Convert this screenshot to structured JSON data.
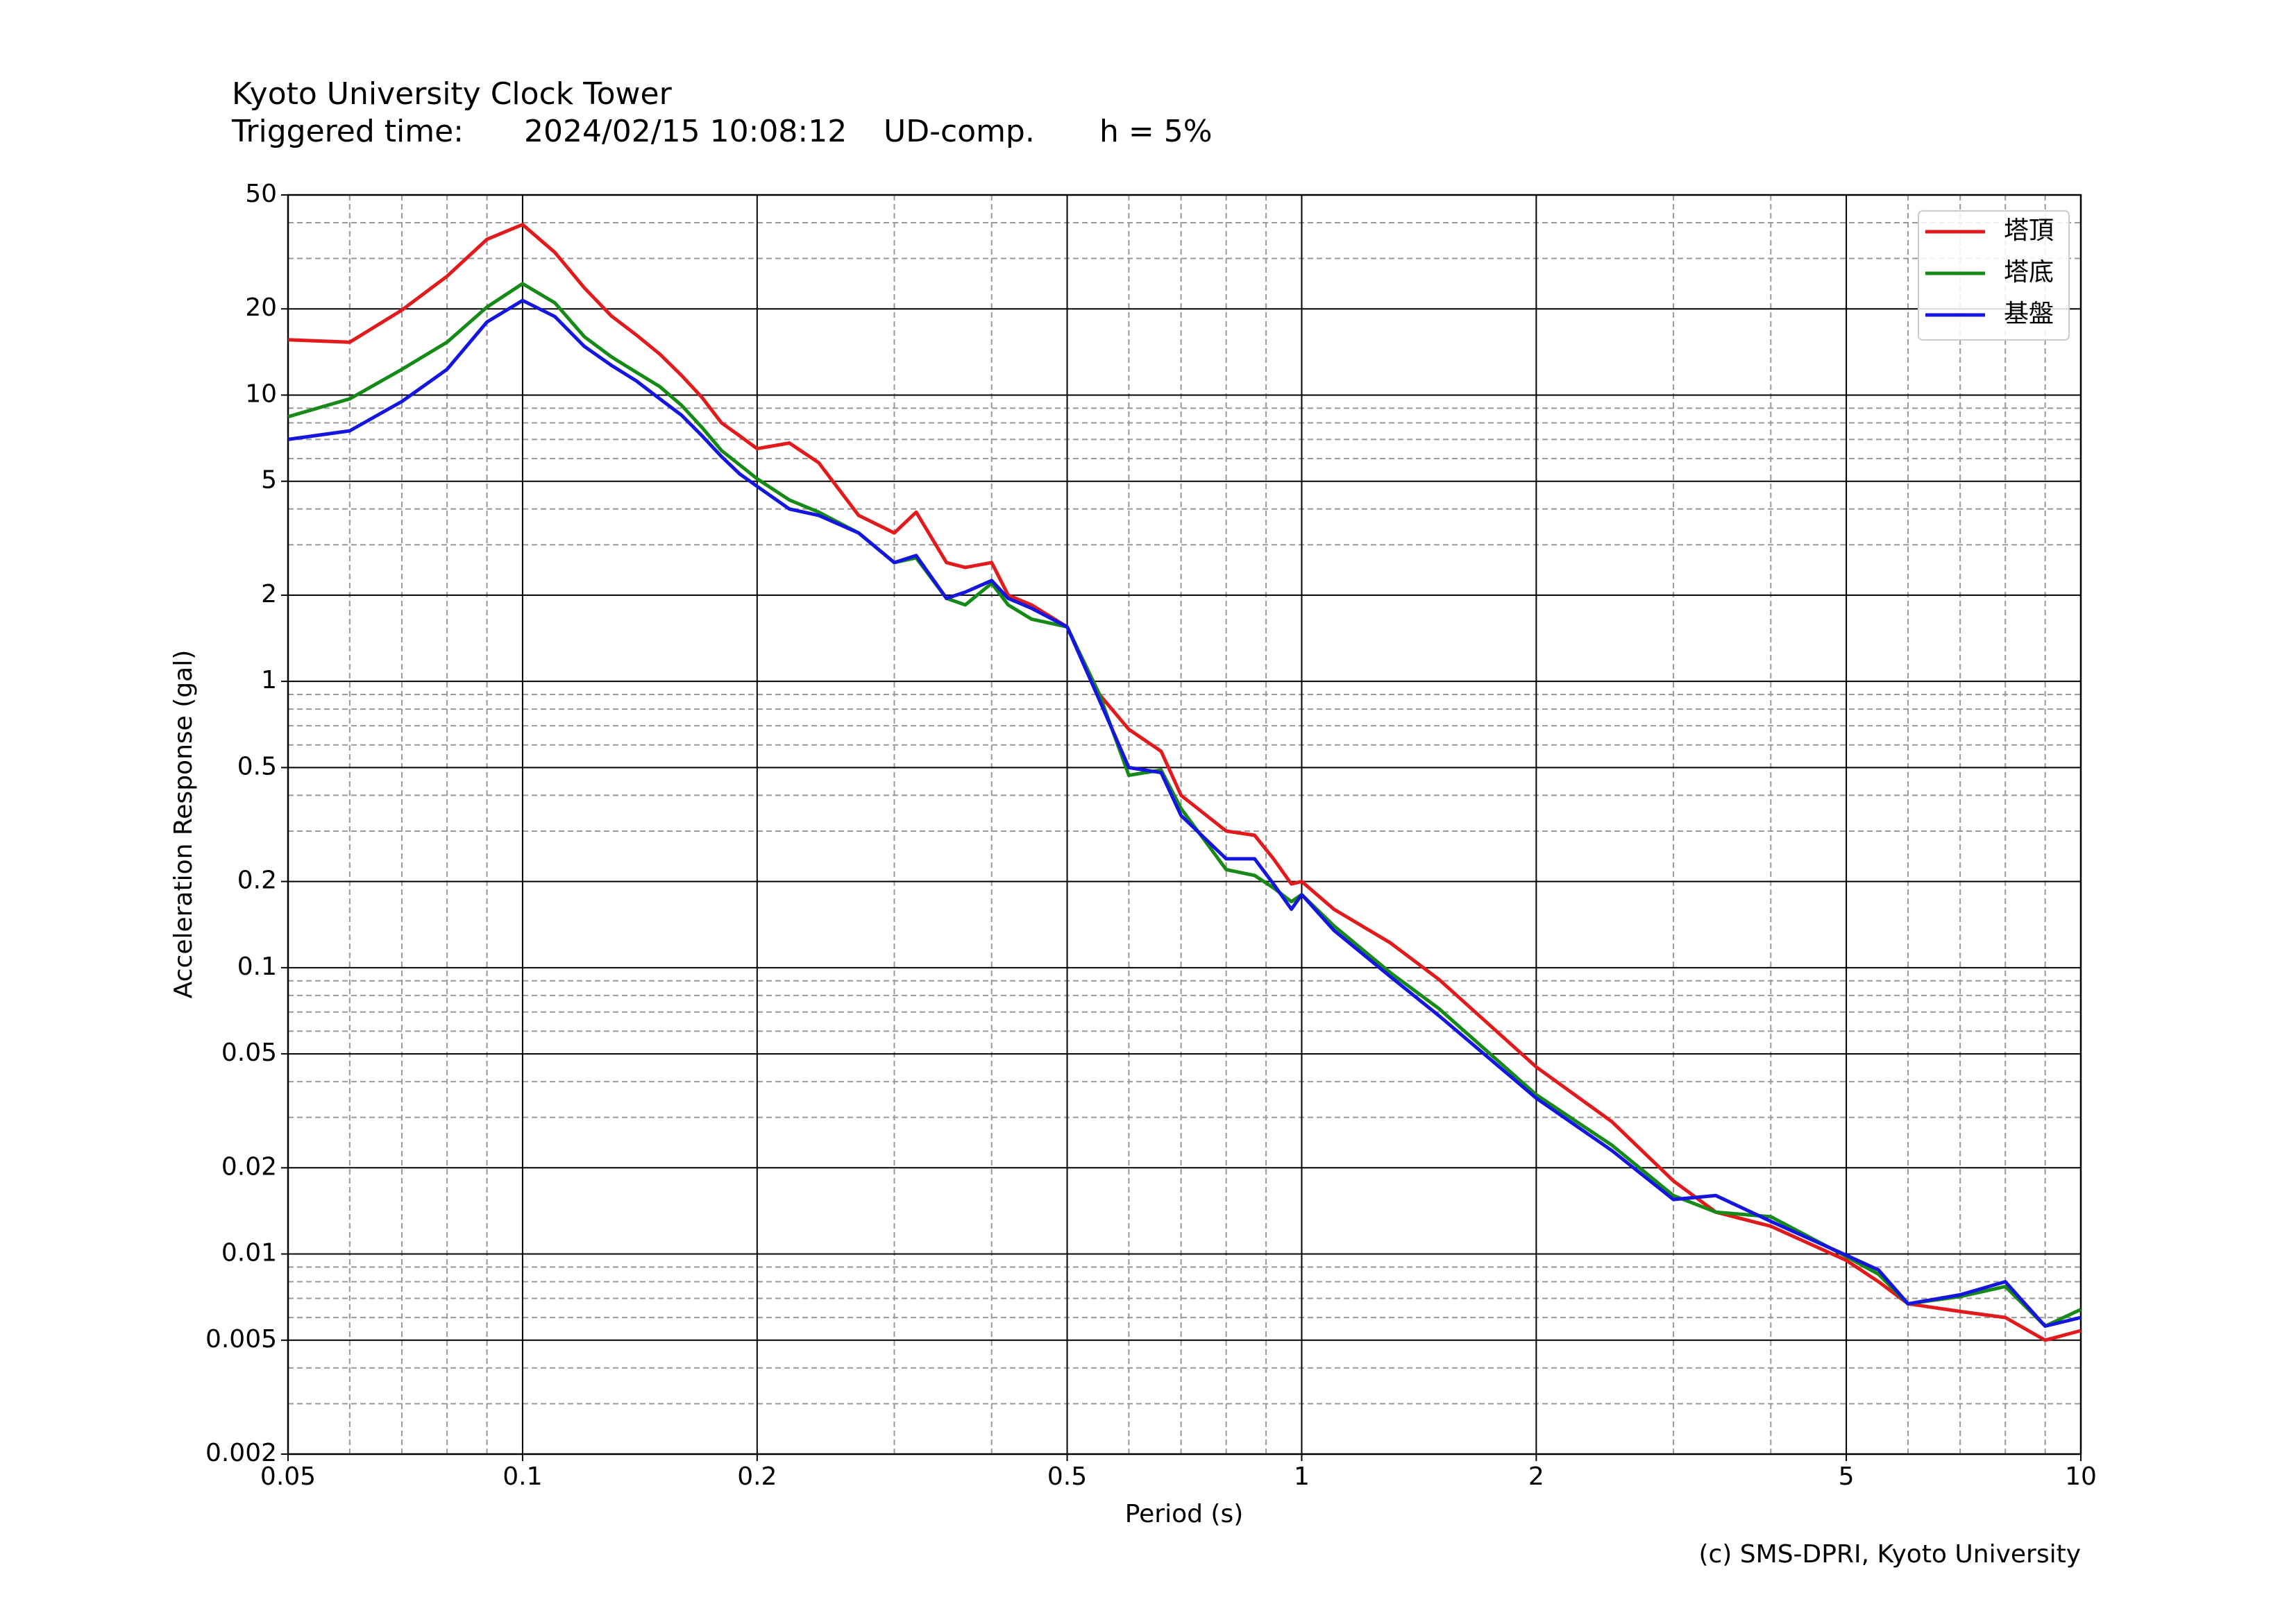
{
  "chart_data": {
    "type": "line",
    "title": "Kyoto University Clock Tower",
    "subtitle": [
      "Triggered time:",
      "2024/02/15 10:08:12",
      "UD-comp.",
      "h = 5%"
    ],
    "xlabel": "Period (s)",
    "ylabel": "Acceleration Response (gal)",
    "credit": "(c) SMS-DPRI, Kyoto University",
    "xscale": "log",
    "yscale": "log",
    "grid": true,
    "legend_loc": "upper right",
    "xlim": [
      0.05,
      10
    ],
    "ylim": [
      0.002,
      50
    ],
    "xticks": [
      0.05,
      0.1,
      0.2,
      0.5,
      1,
      2,
      5,
      10
    ],
    "xminor": [
      0.06,
      0.07,
      0.08,
      0.09,
      0.3,
      0.4,
      0.6,
      0.7,
      0.8,
      0.9,
      3,
      4,
      6,
      7,
      8,
      9
    ],
    "yticks": [
      0.002,
      0.005,
      0.01,
      0.02,
      0.05,
      0.1,
      0.2,
      0.5,
      1,
      2,
      5,
      10,
      20,
      50
    ],
    "yminor": [
      0.003,
      0.004,
      0.006,
      0.007,
      0.008,
      0.009,
      0.03,
      0.04,
      0.06,
      0.07,
      0.08,
      0.09,
      0.3,
      0.4,
      0.6,
      0.7,
      0.8,
      0.9,
      3,
      4,
      6,
      7,
      8,
      9,
      30,
      40
    ],
    "x": [
      0.05,
      0.06,
      0.07,
      0.08,
      0.09,
      0.1,
      0.11,
      0.12,
      0.13,
      0.14,
      0.15,
      0.16,
      0.17,
      0.18,
      0.19,
      0.2,
      0.22,
      0.24,
      0.27,
      0.3,
      0.32,
      0.35,
      0.37,
      0.4,
      0.42,
      0.45,
      0.5,
      0.55,
      0.6,
      0.66,
      0.7,
      0.8,
      0.87,
      0.92,
      0.97,
      1.0,
      1.1,
      1.3,
      1.5,
      2.0,
      2.5,
      3.0,
      3.4,
      4.0,
      5.0,
      5.5,
      6.0,
      7.0,
      8.0,
      9.0,
      10
    ],
    "series": [
      {
        "name": "塔頂",
        "color": "#e31a1c",
        "values": [
          15.6,
          15.3,
          19.8,
          26,
          35,
          39.4,
          31.5,
          23.7,
          18.9,
          16.2,
          13.9,
          11.7,
          9.8,
          8.0,
          7.2,
          6.5,
          6.8,
          5.8,
          3.8,
          3.3,
          3.9,
          2.6,
          2.5,
          2.6,
          2.0,
          1.85,
          1.55,
          0.9,
          0.68,
          0.57,
          0.4,
          0.3,
          0.29,
          0.24,
          0.196,
          0.2,
          0.16,
          0.122,
          0.091,
          0.045,
          0.029,
          0.018,
          0.014,
          0.0125,
          0.0095,
          0.008,
          0.0067,
          0.0063,
          0.006,
          0.005,
          0.0054
        ]
      },
      {
        "name": "塔底",
        "color": "#168a16",
        "values": [
          8.4,
          9.7,
          12.3,
          15.3,
          20.3,
          24.5,
          21,
          16,
          13.6,
          12.0,
          10.7,
          9.2,
          7.7,
          6.4,
          5.7,
          5.1,
          4.3,
          3.9,
          3.3,
          2.6,
          2.7,
          1.95,
          1.85,
          2.2,
          1.85,
          1.65,
          1.55,
          0.9,
          0.47,
          0.49,
          0.36,
          0.22,
          0.21,
          0.19,
          0.17,
          0.18,
          0.14,
          0.096,
          0.072,
          0.036,
          0.024,
          0.016,
          0.014,
          0.0135,
          0.0098,
          0.0085,
          0.0067,
          0.0071,
          0.0077,
          0.0056,
          0.0064
        ]
      },
      {
        "name": "基盤",
        "color": "#1515e0",
        "values": [
          7.0,
          7.5,
          9.5,
          12.3,
          18,
          21.4,
          18.8,
          14.8,
          12.7,
          11.2,
          9.7,
          8.5,
          7.2,
          6.1,
          5.3,
          4.8,
          4.0,
          3.8,
          3.3,
          2.6,
          2.75,
          1.95,
          2.05,
          2.25,
          1.95,
          1.8,
          1.55,
          0.86,
          0.5,
          0.48,
          0.34,
          0.24,
          0.24,
          0.196,
          0.16,
          0.18,
          0.135,
          0.093,
          0.068,
          0.035,
          0.023,
          0.0155,
          0.016,
          0.013,
          0.0099,
          0.0088,
          0.0067,
          0.0072,
          0.008,
          0.0056,
          0.006
        ]
      }
    ]
  }
}
